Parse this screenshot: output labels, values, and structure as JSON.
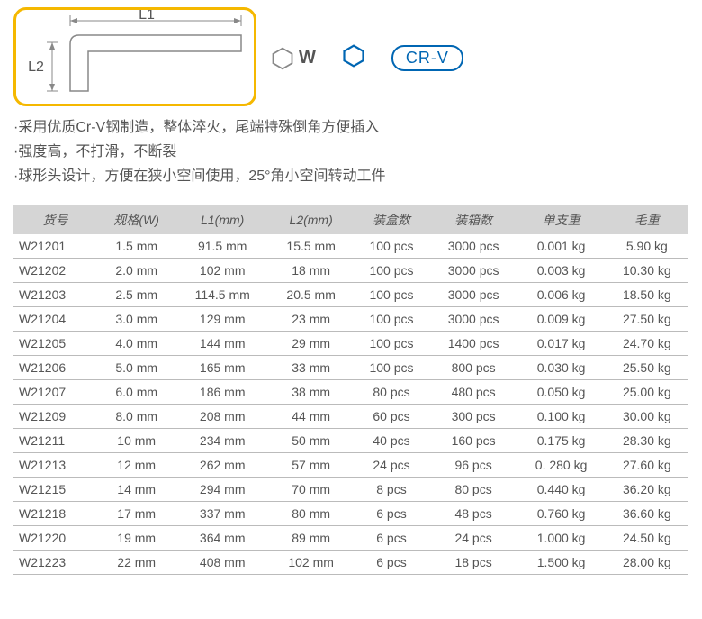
{
  "diagram": {
    "label_L1": "L1",
    "label_L2": "L2",
    "label_W": "W",
    "outline_color": "#888888",
    "border_color": "#f5b800"
  },
  "badges": {
    "hex_outline_color": "#888888",
    "hex_blue_color": "#0066b3",
    "crv_text": "CR-V",
    "crv_color": "#0066b3"
  },
  "description": {
    "line1": "·采用优质Cr-V钢制造，整体淬火，尾端特殊倒角方便插入",
    "line2": "·强度高，不打滑，不断裂",
    "line3": "·球形头设计，方便在狭小空间使用，25°角小空间转动工件"
  },
  "table": {
    "header_bg": "#d5d5d5",
    "columns": [
      "货号",
      "规格(W)",
      "L1(mm)",
      "L2(mm)",
      "装盒数",
      "装箱数",
      "单支重",
      "毛重"
    ],
    "rows": [
      [
        "W21201",
        "1.5 mm",
        "91.5 mm",
        "15.5 mm",
        "100  pcs",
        "3000 pcs",
        "0.001 kg",
        "5.90 kg"
      ],
      [
        "W21202",
        "2.0 mm",
        "102 mm",
        "18 mm",
        "100  pcs",
        "3000 pcs",
        "0.003 kg",
        "10.30 kg"
      ],
      [
        "W21203",
        "2.5 mm",
        "114.5 mm",
        "20.5 mm",
        "100  pcs",
        "3000 pcs",
        "0.006 kg",
        "18.50 kg"
      ],
      [
        "W21204",
        "3.0 mm",
        "129 mm",
        "23 mm",
        "100  pcs",
        "3000 pcs",
        "0.009 kg",
        "27.50 kg"
      ],
      [
        "W21205",
        "4.0 mm",
        "144 mm",
        "29 mm",
        "100  pcs",
        "1400 pcs",
        "0.017 kg",
        "24.70 kg"
      ],
      [
        "W21206",
        "5.0 mm",
        "165 mm",
        "33 mm",
        "100  pcs",
        "800 pcs",
        "0.030 kg",
        "25.50 kg"
      ],
      [
        "W21207",
        "6.0 mm",
        "186 mm",
        "38 mm",
        "80  pcs",
        "480 pcs",
        "0.050 kg",
        "25.00 kg"
      ],
      [
        "W21209",
        "8.0 mm",
        "208 mm",
        "44 mm",
        "60  pcs",
        "300 pcs",
        "0.100 kg",
        "30.00 kg"
      ],
      [
        "W21211",
        "10 mm",
        "234 mm",
        "50 mm",
        "40  pcs",
        "160 pcs",
        "0.175 kg",
        "28.30 kg"
      ],
      [
        "W21213",
        "12 mm",
        "262 mm",
        "57 mm",
        "24  pcs",
        "96 pcs",
        "0. 280 kg",
        "27.60 kg"
      ],
      [
        "W21215",
        "14 mm",
        "294 mm",
        "70 mm",
        "8  pcs",
        "80 pcs",
        "0.440 kg",
        "36.20 kg"
      ],
      [
        "W21218",
        "17 mm",
        "337 mm",
        "80 mm",
        "6  pcs",
        "48 pcs",
        "0.760 kg",
        "36.60 kg"
      ],
      [
        "W21220",
        "19 mm",
        "364 mm",
        "89 mm",
        "6  pcs",
        "24 pcs",
        "1.000 kg",
        "24.50 kg"
      ],
      [
        "W21223",
        "22 mm",
        "408 mm",
        "102 mm",
        "6  pcs",
        "18 pcs",
        "1.500 kg",
        "28.00 kg"
      ]
    ]
  }
}
